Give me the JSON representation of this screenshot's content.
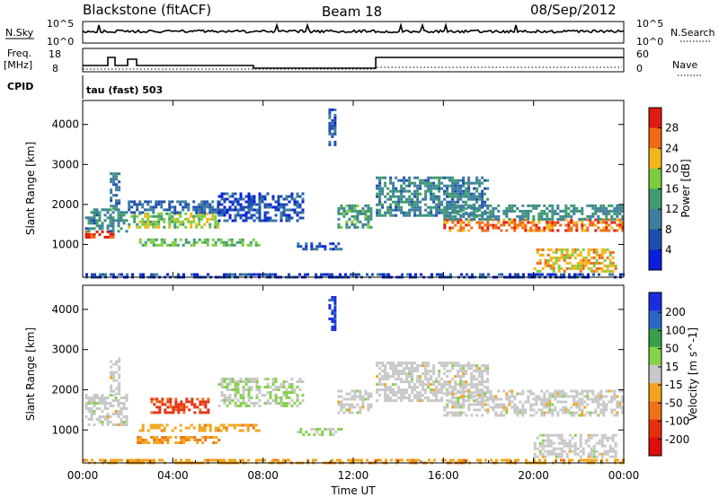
{
  "header": {
    "station": "Blackstone (fitACF)",
    "beam": "Beam 18",
    "date": "08/Sep/2012"
  },
  "top_panels": {
    "nsky_label": "N.Sky",
    "nsky_ticks": [
      "10^5",
      "10^0"
    ],
    "nsearch_label": "N.Search",
    "nsearch_ticks": [
      "10^5",
      "10^0"
    ],
    "freq_label": "Freq.",
    "freq_unit": "[MHz]",
    "freq_ticks": [
      "18",
      "8"
    ],
    "nave_label": "Nave",
    "nave_ticks": [
      "60",
      "0"
    ],
    "cpid_label": "CPID",
    "cpid_text": "tau (fast) 503"
  },
  "colors": {
    "power": [
      "#0b1ee0",
      "#1e4fb0",
      "#3c7e9e",
      "#3f9c6e",
      "#7ccc3e",
      "#f2b51a",
      "#f06a16",
      "#e01a10"
    ],
    "velocity": [
      "#1a2ee0",
      "#2b66c4",
      "#36a04a",
      "#86d24a",
      "#c8c8c8",
      "#f2a51c",
      "#f07018",
      "#e53010",
      "#e00d0d"
    ]
  },
  "chart_data": [
    {
      "type": "heatmap",
      "name": "power",
      "xlabel": "",
      "ylabel": "Slant Range [km]",
      "x_range_hours": [
        0,
        24
      ],
      "ylim_km": [
        180,
        4600
      ],
      "y_ticks": [
        "1000",
        "2000",
        "3000",
        "4000"
      ],
      "colorbar_label": "Power [dB]",
      "colorbar_ticks": [
        "4",
        "8",
        "12",
        "16",
        "20",
        "24",
        "28"
      ],
      "colorbar_range": [
        0,
        32
      ],
      "regions": [
        {
          "t0": 0.1,
          "t1": 1.3,
          "r0": 1150,
          "r1": 1350,
          "v": 29
        },
        {
          "t0": 0.1,
          "t1": 2.0,
          "r0": 1350,
          "r1": 1900,
          "v": 11
        },
        {
          "t0": 1.2,
          "t1": 1.6,
          "r0": 1900,
          "r1": 2800,
          "v": 9
        },
        {
          "t0": 2.0,
          "t1": 6.0,
          "r0": 1450,
          "r1": 1800,
          "v": 18
        },
        {
          "t0": 2.0,
          "t1": 6.0,
          "r0": 1800,
          "r1": 2100,
          "v": 8
        },
        {
          "t0": 2.5,
          "t1": 7.8,
          "r0": 950,
          "r1": 1150,
          "v": 16
        },
        {
          "t0": 6.0,
          "t1": 9.8,
          "r0": 1600,
          "r1": 2300,
          "v": 6
        },
        {
          "t0": 9.5,
          "t1": 11.5,
          "r0": 850,
          "r1": 1050,
          "v": 6
        },
        {
          "t0": 10.9,
          "t1": 11.2,
          "r0": 3500,
          "r1": 4400,
          "v": 6
        },
        {
          "t0": 11.3,
          "t1": 12.8,
          "r0": 1400,
          "r1": 2000,
          "v": 14
        },
        {
          "t0": 13.0,
          "t1": 18.0,
          "r0": 1700,
          "r1": 2700,
          "v": 11
        },
        {
          "t0": 16.0,
          "t1": 24.0,
          "r0": 1350,
          "r1": 1650,
          "v": 26
        },
        {
          "t0": 16.0,
          "t1": 24.0,
          "r0": 1650,
          "r1": 2000,
          "v": 12
        },
        {
          "t0": 20.0,
          "t1": 23.6,
          "r0": 300,
          "r1": 900,
          "v": 22
        },
        {
          "t0": 0.0,
          "t1": 24.0,
          "r0": 180,
          "r1": 280,
          "v": 5
        }
      ]
    },
    {
      "type": "heatmap",
      "name": "velocity",
      "xlabel": "Time UT",
      "ylabel": "Slant Range [km]",
      "x_range_hours": [
        0,
        24
      ],
      "x_ticks": [
        "00:00",
        "04:00",
        "08:00",
        "12:00",
        "16:00",
        "20:00",
        "00:00"
      ],
      "ylim_km": [
        180,
        4600
      ],
      "y_ticks": [
        "1000",
        "2000",
        "3000",
        "4000"
      ],
      "colorbar_label": "Velocity [m s^-1]",
      "colorbar_ticks": [
        "200",
        "100",
        "50",
        "15",
        "-15",
        "-50",
        "-100",
        "-200"
      ],
      "colorbar_range": [
        -250,
        250
      ],
      "regions": [
        {
          "t0": 0.1,
          "t1": 2.0,
          "r0": 1150,
          "r1": 1900,
          "v": 0
        },
        {
          "t0": 1.2,
          "t1": 1.6,
          "r0": 1900,
          "r1": 2800,
          "v": 0
        },
        {
          "t0": 3.0,
          "t1": 5.6,
          "r0": 1450,
          "r1": 1800,
          "v": -160
        },
        {
          "t0": 2.5,
          "t1": 7.8,
          "r0": 950,
          "r1": 1150,
          "v": -60
        },
        {
          "t0": 2.4,
          "t1": 6.0,
          "r0": 700,
          "r1": 850,
          "v": -80
        },
        {
          "t0": 6.0,
          "t1": 9.8,
          "r0": 1600,
          "r1": 2300,
          "v": 25
        },
        {
          "t0": 9.5,
          "t1": 11.5,
          "r0": 850,
          "r1": 1050,
          "v": 40
        },
        {
          "t0": 10.9,
          "t1": 11.2,
          "r0": 3500,
          "r1": 4400,
          "v": 210
        },
        {
          "t0": 11.3,
          "t1": 12.8,
          "r0": 1400,
          "r1": 2000,
          "v": 0
        },
        {
          "t0": 13.0,
          "t1": 18.0,
          "r0": 1700,
          "r1": 2700,
          "v": 0
        },
        {
          "t0": 16.0,
          "t1": 24.0,
          "r0": 1350,
          "r1": 2000,
          "v": 0
        },
        {
          "t0": 20.0,
          "t1": 23.6,
          "r0": 300,
          "r1": 900,
          "v": 0
        },
        {
          "t0": 0.0,
          "t1": 24.0,
          "r0": 180,
          "r1": 280,
          "v": -60
        }
      ]
    }
  ]
}
